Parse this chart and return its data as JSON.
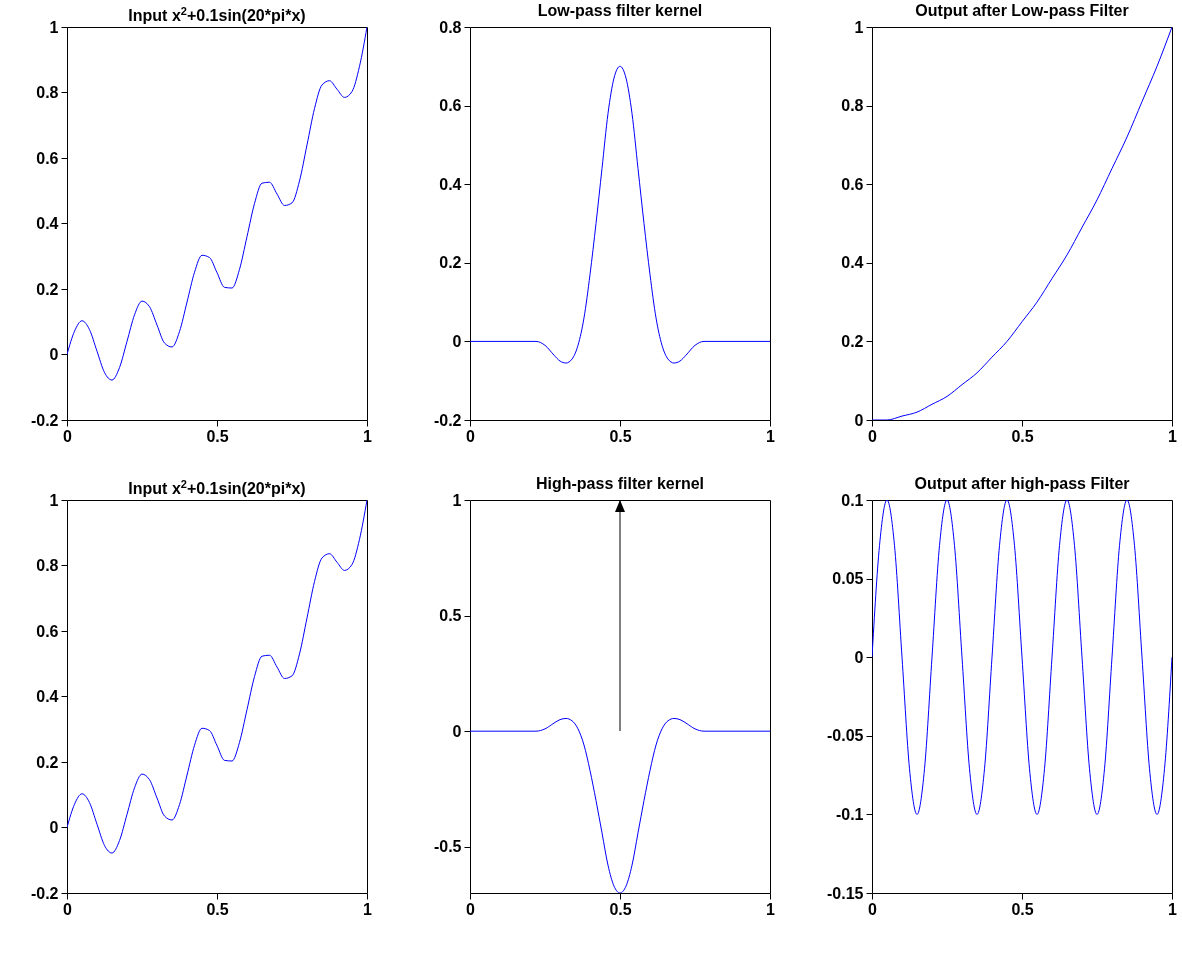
{
  "chart_data": [
    {
      "type": "line",
      "title": "Input x$^{2}$+0.1sin(20*pi*x)",
      "xlim": [
        0,
        1
      ],
      "xticks": [
        0,
        0.5,
        1
      ],
      "ylim": [
        -0.2,
        1
      ],
      "yticks": [
        -0.2,
        0,
        0.2,
        0.4,
        0.6,
        0.8,
        1
      ],
      "series": [
        {
          "color": "#0000ff",
          "x": [
            0,
            0.025,
            0.05,
            0.075,
            0.1,
            0.125,
            0.15,
            0.175,
            0.2,
            0.225,
            0.25,
            0.275,
            0.3,
            0.325,
            0.35,
            0.375,
            0.4,
            0.425,
            0.45,
            0.475,
            0.5,
            0.525,
            0.55,
            0.575,
            0.6,
            0.625,
            0.65,
            0.675,
            0.7,
            0.725,
            0.75,
            0.775,
            0.8,
            0.825,
            0.85,
            0.875,
            0.9,
            0.925,
            0.95,
            0.975,
            1
          ],
          "values": [
            0,
            0.071,
            0.103,
            0.076,
            0.01,
            -0.055,
            -0.078,
            -0.04,
            0.04,
            0.121,
            0.163,
            0.146,
            0.09,
            0.035,
            0.023,
            0.07,
            0.16,
            0.251,
            0.303,
            0.296,
            0.25,
            0.205,
            0.203,
            0.26,
            0.36,
            0.461,
            0.523,
            0.526,
            0.49,
            0.455,
            0.463,
            0.53,
            0.64,
            0.751,
            0.823,
            0.836,
            0.81,
            0.785,
            0.803,
            0.88,
            1
          ]
        }
      ]
    },
    {
      "type": "line",
      "title": "Low-pass filter kernel",
      "xlim": [
        0,
        1
      ],
      "xticks": [
        0,
        0.5,
        1
      ],
      "ylim": [
        -0.2,
        0.8
      ],
      "yticks": [
        -0.2,
        0,
        0.2,
        0.4,
        0.6,
        0.8
      ],
      "series": [
        {
          "color": "#0000ff",
          "x": [
            0,
            0.2,
            0.22,
            0.25,
            0.28,
            0.3,
            0.32,
            0.34,
            0.36,
            0.38,
            0.4,
            0.42,
            0.44,
            0.46,
            0.48,
            0.5,
            0.52,
            0.54,
            0.56,
            0.58,
            0.6,
            0.62,
            0.64,
            0.66,
            0.68,
            0.7,
            0.72,
            0.75,
            0.78,
            0.8,
            1
          ],
          "values": [
            0,
            0,
            0,
            -0.01,
            -0.035,
            -0.05,
            -0.055,
            -0.045,
            -0.01,
            0.06,
            0.17,
            0.3,
            0.44,
            0.58,
            0.67,
            0.7,
            0.67,
            0.58,
            0.44,
            0.3,
            0.17,
            0.06,
            -0.01,
            -0.045,
            -0.055,
            -0.05,
            -0.035,
            -0.01,
            0,
            0,
            0
          ]
        }
      ]
    },
    {
      "type": "line",
      "title": "Output after Low-pass Filter",
      "xlim": [
        0,
        1
      ],
      "xticks": [
        0,
        0.5,
        1
      ],
      "ylim": [
        0,
        1
      ],
      "yticks": [
        0,
        0.2,
        0.4,
        0.6,
        0.8,
        1
      ],
      "series": [
        {
          "color": "#0000ff",
          "x": [
            0,
            0.05,
            0.1,
            0.15,
            0.2,
            0.25,
            0.3,
            0.35,
            0.4,
            0.45,
            0.5,
            0.55,
            0.6,
            0.65,
            0.7,
            0.75,
            0.8,
            0.85,
            0.9,
            0.95,
            1
          ],
          "values": [
            0,
            0,
            0.01,
            0.02,
            0.04,
            0.06,
            0.09,
            0.12,
            0.16,
            0.2,
            0.25,
            0.3,
            0.36,
            0.42,
            0.49,
            0.56,
            0.64,
            0.72,
            0.81,
            0.9,
            1
          ]
        }
      ]
    },
    {
      "type": "line",
      "title": "Input x$^{2}$+0.1sin(20*pi*x)",
      "xlim": [
        0,
        1
      ],
      "xticks": [
        0,
        0.5,
        1
      ],
      "ylim": [
        -0.2,
        1
      ],
      "yticks": [
        -0.2,
        0,
        0.2,
        0.4,
        0.6,
        0.8,
        1
      ],
      "series": [
        {
          "color": "#0000ff",
          "x": [
            0,
            0.025,
            0.05,
            0.075,
            0.1,
            0.125,
            0.15,
            0.175,
            0.2,
            0.225,
            0.25,
            0.275,
            0.3,
            0.325,
            0.35,
            0.375,
            0.4,
            0.425,
            0.45,
            0.475,
            0.5,
            0.525,
            0.55,
            0.575,
            0.6,
            0.625,
            0.65,
            0.675,
            0.7,
            0.725,
            0.75,
            0.775,
            0.8,
            0.825,
            0.85,
            0.875,
            0.9,
            0.925,
            0.95,
            0.975,
            1
          ],
          "values": [
            0,
            0.071,
            0.103,
            0.076,
            0.01,
            -0.055,
            -0.078,
            -0.04,
            0.04,
            0.121,
            0.163,
            0.146,
            0.09,
            0.035,
            0.023,
            0.07,
            0.16,
            0.251,
            0.303,
            0.296,
            0.25,
            0.205,
            0.203,
            0.26,
            0.36,
            0.461,
            0.523,
            0.526,
            0.49,
            0.455,
            0.463,
            0.53,
            0.64,
            0.751,
            0.823,
            0.836,
            0.81,
            0.785,
            0.803,
            0.88,
            1
          ]
        }
      ]
    },
    {
      "type": "line",
      "title": "High-pass filter kernel",
      "xlim": [
        0,
        1
      ],
      "xticks": [
        0,
        0.5,
        1
      ],
      "ylim": [
        -0.7,
        1
      ],
      "yticks": [
        -0.5,
        0,
        0.5,
        1
      ],
      "series": [
        {
          "color": "#0000ff",
          "x": [
            0,
            0.2,
            0.22,
            0.25,
            0.28,
            0.3,
            0.32,
            0.34,
            0.36,
            0.38,
            0.4,
            0.42,
            0.44,
            0.46,
            0.48,
            0.5,
            0.52,
            0.54,
            0.56,
            0.58,
            0.6,
            0.62,
            0.64,
            0.66,
            0.68,
            0.7,
            0.72,
            0.75,
            0.78,
            0.8,
            1
          ],
          "values": [
            0,
            0,
            0,
            0.01,
            0.035,
            0.05,
            0.055,
            0.045,
            0.01,
            -0.06,
            -0.17,
            -0.3,
            -0.44,
            -0.58,
            -0.67,
            -0.7,
            -0.67,
            -0.58,
            -0.44,
            -0.3,
            -0.17,
            -0.06,
            0.01,
            0.045,
            0.055,
            0.05,
            0.035,
            0.01,
            0,
            0,
            0
          ]
        },
        {
          "color": "#000000",
          "x": [
            0.5,
            0.5
          ],
          "values": [
            0,
            1
          ]
        }
      ]
    },
    {
      "type": "line",
      "title": "Output after high-pass Filter",
      "xlim": [
        0,
        1
      ],
      "xticks": [
        0,
        0.5,
        1
      ],
      "ylim": [
        -0.15,
        0.1
      ],
      "yticks": [
        -0.15,
        -0.1,
        -0.05,
        0,
        0.05,
        0.1
      ],
      "series": [
        {
          "color": "#0000ff",
          "x": [
            0,
            0.025,
            0.05,
            0.075,
            0.1,
            0.125,
            0.15,
            0.175,
            0.2,
            0.225,
            0.25,
            0.275,
            0.3,
            0.325,
            0.35,
            0.375,
            0.4,
            0.425,
            0.45,
            0.475,
            0.5,
            0.525,
            0.55,
            0.575,
            0.6,
            0.625,
            0.65,
            0.675,
            0.7,
            0.725,
            0.75,
            0.775,
            0.8,
            0.825,
            0.85,
            0.875,
            0.9,
            0.925,
            0.95,
            0.975,
            1
          ],
          "values": [
            0,
            0.071,
            0.1,
            0.071,
            0,
            -0.071,
            -0.1,
            -0.071,
            0,
            0.071,
            0.1,
            0.071,
            0,
            -0.071,
            -0.1,
            -0.071,
            0,
            0.071,
            0.1,
            0.071,
            0,
            -0.071,
            -0.1,
            -0.071,
            0,
            0.071,
            0.1,
            0.071,
            0,
            -0.071,
            -0.1,
            -0.071,
            0,
            0.071,
            0.1,
            0.071,
            0,
            -0.071,
            -0.1,
            -0.071,
            0
          ]
        }
      ]
    }
  ]
}
